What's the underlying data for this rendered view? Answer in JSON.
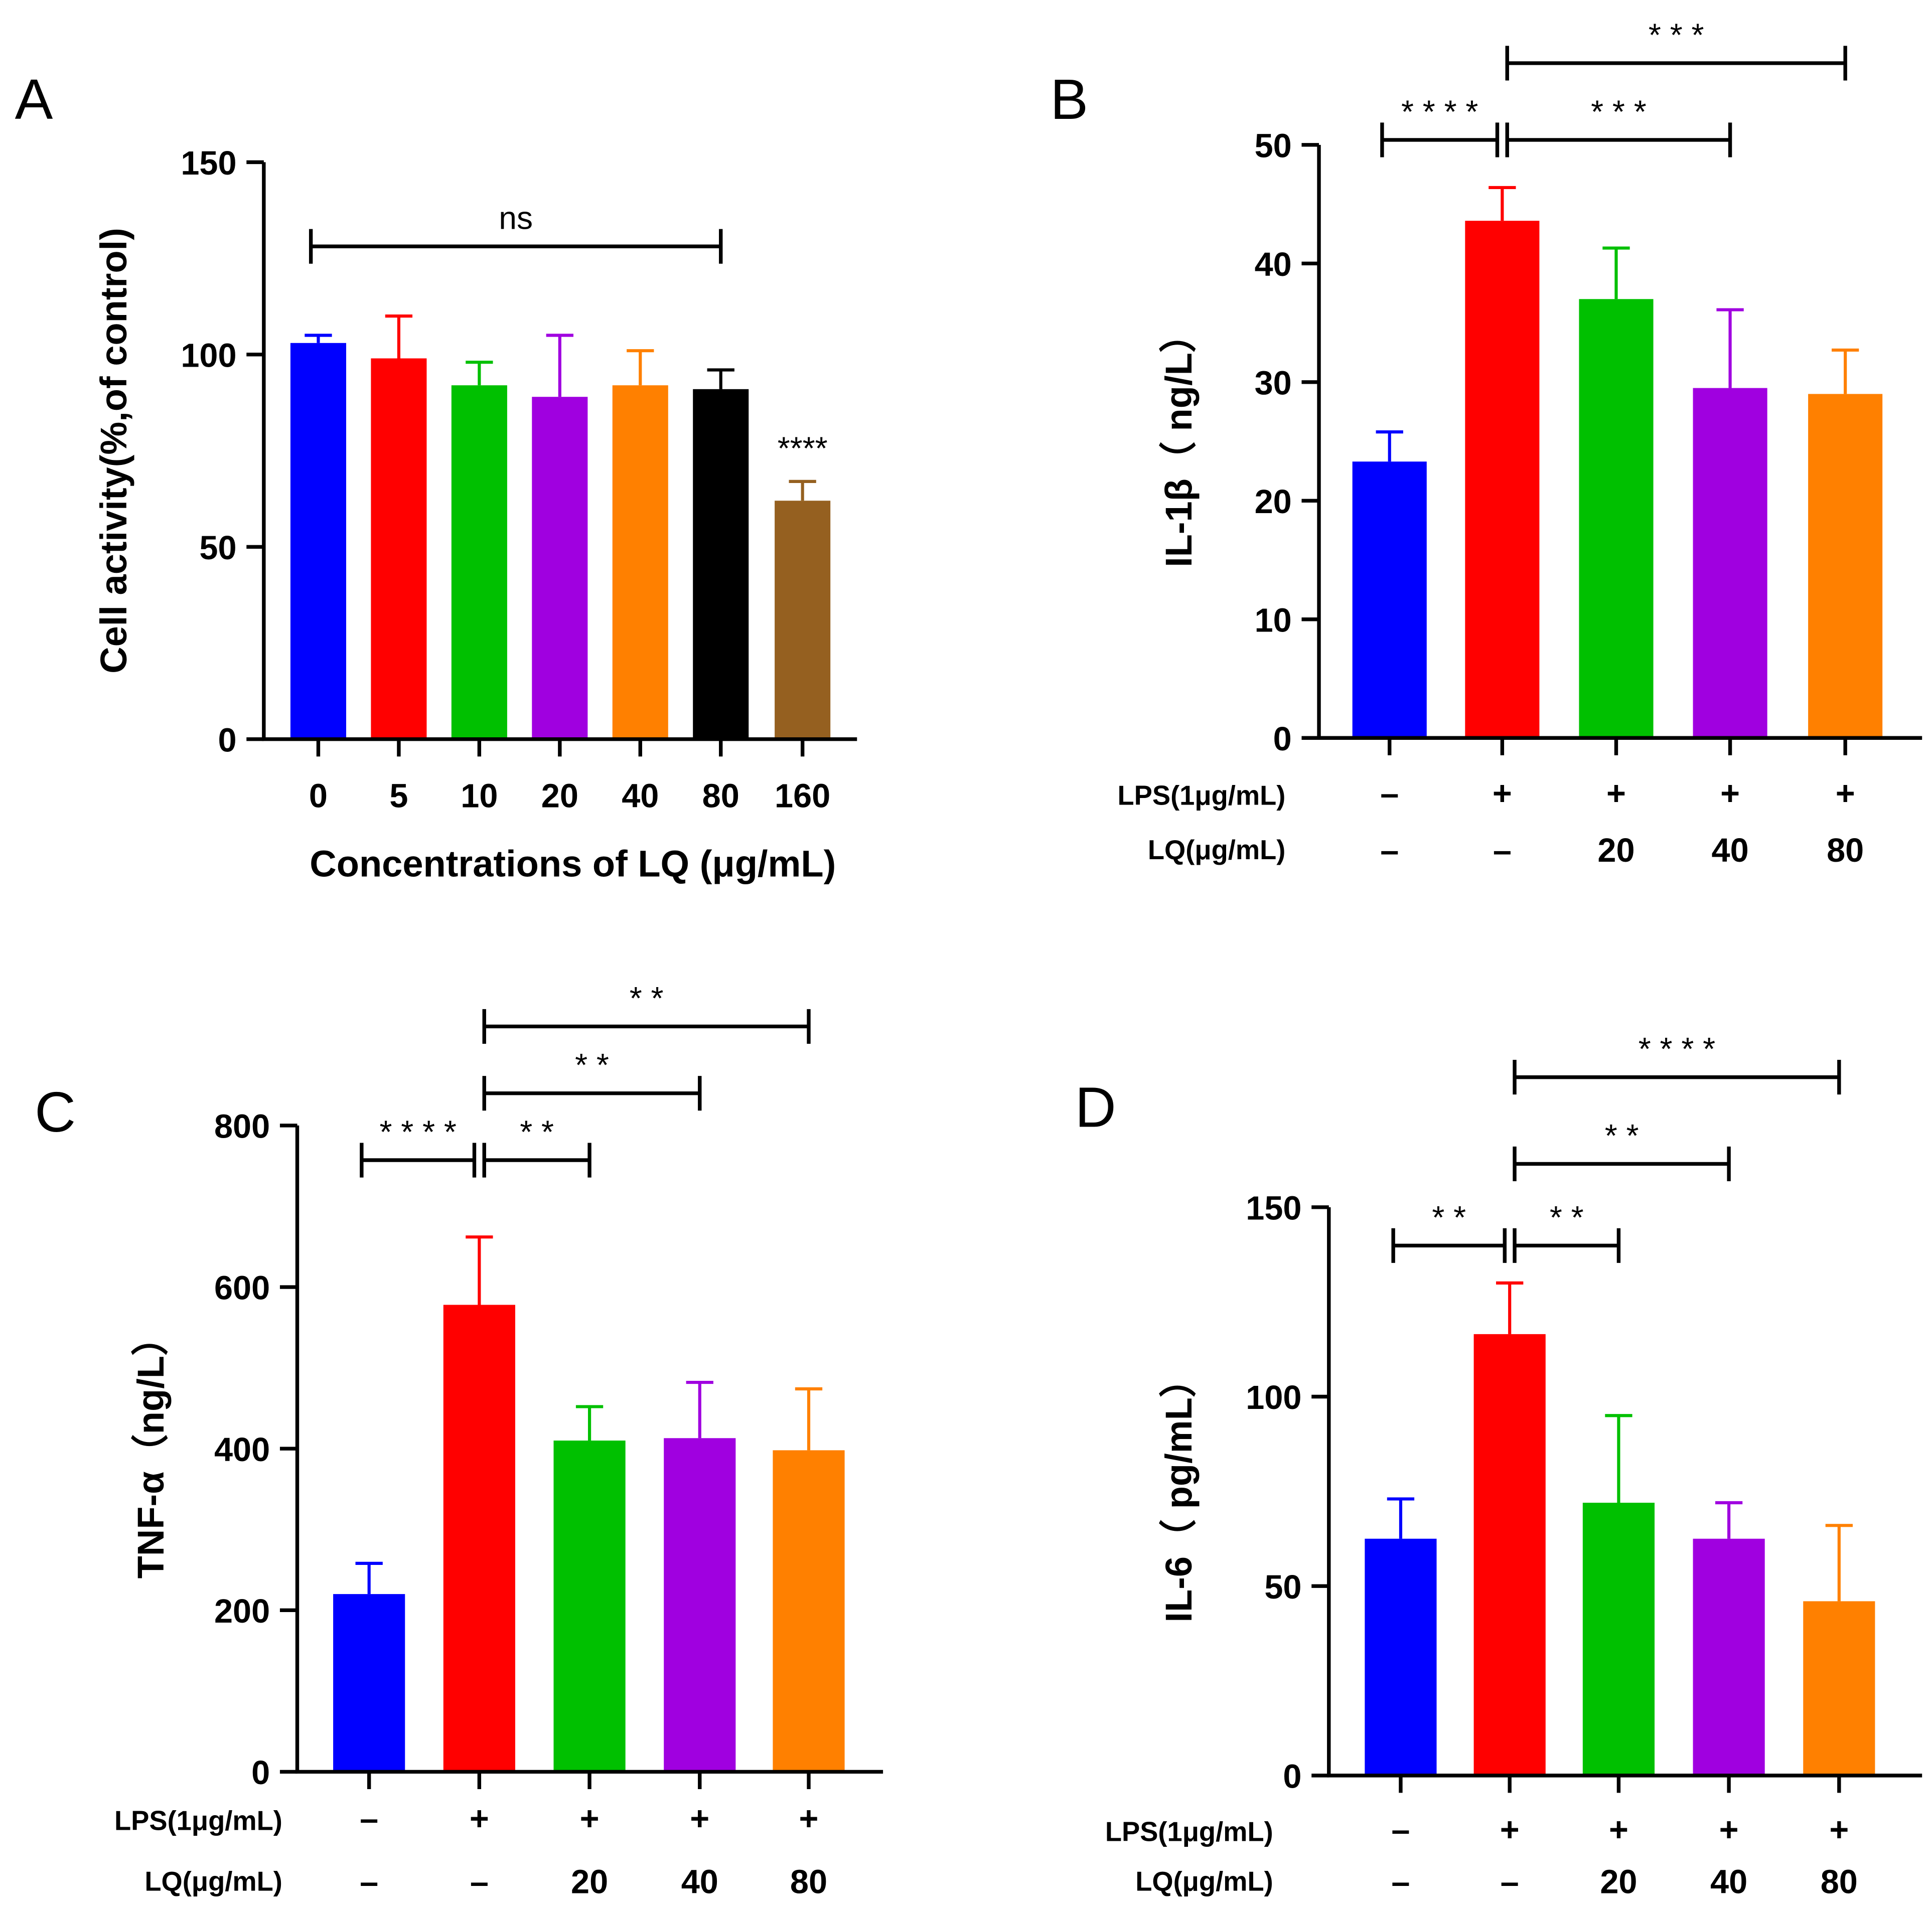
{
  "chart_data": [
    {
      "panel": "A",
      "type": "bar",
      "ylabel": "Cell activity(%,of control)",
      "xlabel": "Concentrations of LQ (μg/mL)",
      "ylim": [
        0,
        150
      ],
      "yticks": [
        0,
        50,
        100,
        150
      ],
      "categories": [
        "0",
        "5",
        "10",
        "20",
        "40",
        "80",
        "160"
      ],
      "values": [
        103,
        99,
        92,
        89,
        92,
        91,
        62
      ],
      "errors": [
        2,
        11,
        6,
        16,
        9,
        5,
        5
      ],
      "colors": [
        "#0000ff",
        "#ff0000",
        "#00c000",
        "#a000e0",
        "#ff8000",
        "#000000",
        "#956020"
      ],
      "annotations": [
        {
          "text": "****",
          "bar": 6
        }
      ],
      "brackets": [
        {
          "from": 0,
          "to": 5,
          "text": "ns",
          "level": 0
        }
      ]
    },
    {
      "panel": "B",
      "type": "bar",
      "ylabel": "IL-1β（ ng/L）",
      "ylim": [
        0,
        50
      ],
      "yticks": [
        0,
        10,
        20,
        30,
        40,
        50
      ],
      "rows": [
        {
          "label": "LPS(1μg/mL)",
          "values": [
            "–",
            "+",
            "+",
            "+",
            "+"
          ]
        },
        {
          "label": "LQ(μg/mL)",
          "values": [
            "–",
            "–",
            "20",
            "40",
            "80"
          ]
        }
      ],
      "values": [
        23.3,
        43.6,
        37,
        29.5,
        29
      ],
      "errors": [
        2.5,
        2.8,
        4.3,
        6.6,
        3.7
      ],
      "colors": [
        "#0000ff",
        "#ff0000",
        "#00c000",
        "#a000e0",
        "#ff8000"
      ],
      "brackets": [
        {
          "from": 0,
          "to": 1,
          "text": "* * * *",
          "level": 0
        },
        {
          "from": 1,
          "to": 3,
          "text": "* * *",
          "level": 0
        },
        {
          "from": 1,
          "to": 4,
          "text": "* * *",
          "level": 1
        }
      ]
    },
    {
      "panel": "C",
      "type": "bar",
      "ylabel": "TNF-α（ng/L）",
      "ylim": [
        0,
        800
      ],
      "yticks": [
        0,
        200,
        400,
        600,
        800
      ],
      "rows": [
        {
          "label": "LPS(1μg/mL)",
          "values": [
            "–",
            "+",
            "+",
            "+",
            "+"
          ]
        },
        {
          "label": "LQ(μg/mL)",
          "values": [
            "–",
            "–",
            "20",
            "40",
            "80"
          ]
        }
      ],
      "values": [
        220,
        578,
        410,
        413,
        398
      ],
      "errors": [
        38,
        84,
        42,
        69,
        76
      ],
      "colors": [
        "#0000ff",
        "#ff0000",
        "#00c000",
        "#a000e0",
        "#ff8000"
      ],
      "brackets": [
        {
          "from": 0,
          "to": 1,
          "text": "* * * *",
          "level": 0
        },
        {
          "from": 1,
          "to": 2,
          "text": "* *",
          "level": 0
        },
        {
          "from": 1,
          "to": 3,
          "text": "* *",
          "level": 1
        },
        {
          "from": 1,
          "to": 4,
          "text": "* *",
          "level": 2
        }
      ]
    },
    {
      "panel": "D",
      "type": "bar",
      "ylabel": "IL-6（ pg/mL）",
      "ylim": [
        0,
        150
      ],
      "yticks": [
        0,
        50,
        100,
        150
      ],
      "rows": [
        {
          "label": "LPS(1μg/mL)",
          "values": [
            "–",
            "+",
            "+",
            "+",
            "+"
          ]
        },
        {
          "label": "LQ(μg/mL)",
          "values": [
            "–",
            "–",
            "20",
            "40",
            "80"
          ]
        }
      ],
      "values": [
        62.5,
        116.5,
        72,
        62.5,
        46
      ],
      "errors": [
        10.5,
        13.5,
        23,
        9.5,
        20
      ],
      "colors": [
        "#0000ff",
        "#ff0000",
        "#00c000",
        "#a000e0",
        "#ff8000"
      ],
      "brackets": [
        {
          "from": 0,
          "to": 1,
          "text": "* *",
          "level": 0
        },
        {
          "from": 1,
          "to": 2,
          "text": "* *",
          "level": 0
        },
        {
          "from": 1,
          "to": 3,
          "text": "* *",
          "level": 1
        },
        {
          "from": 1,
          "to": 4,
          "text": "* * * *",
          "level": 2
        }
      ]
    }
  ]
}
